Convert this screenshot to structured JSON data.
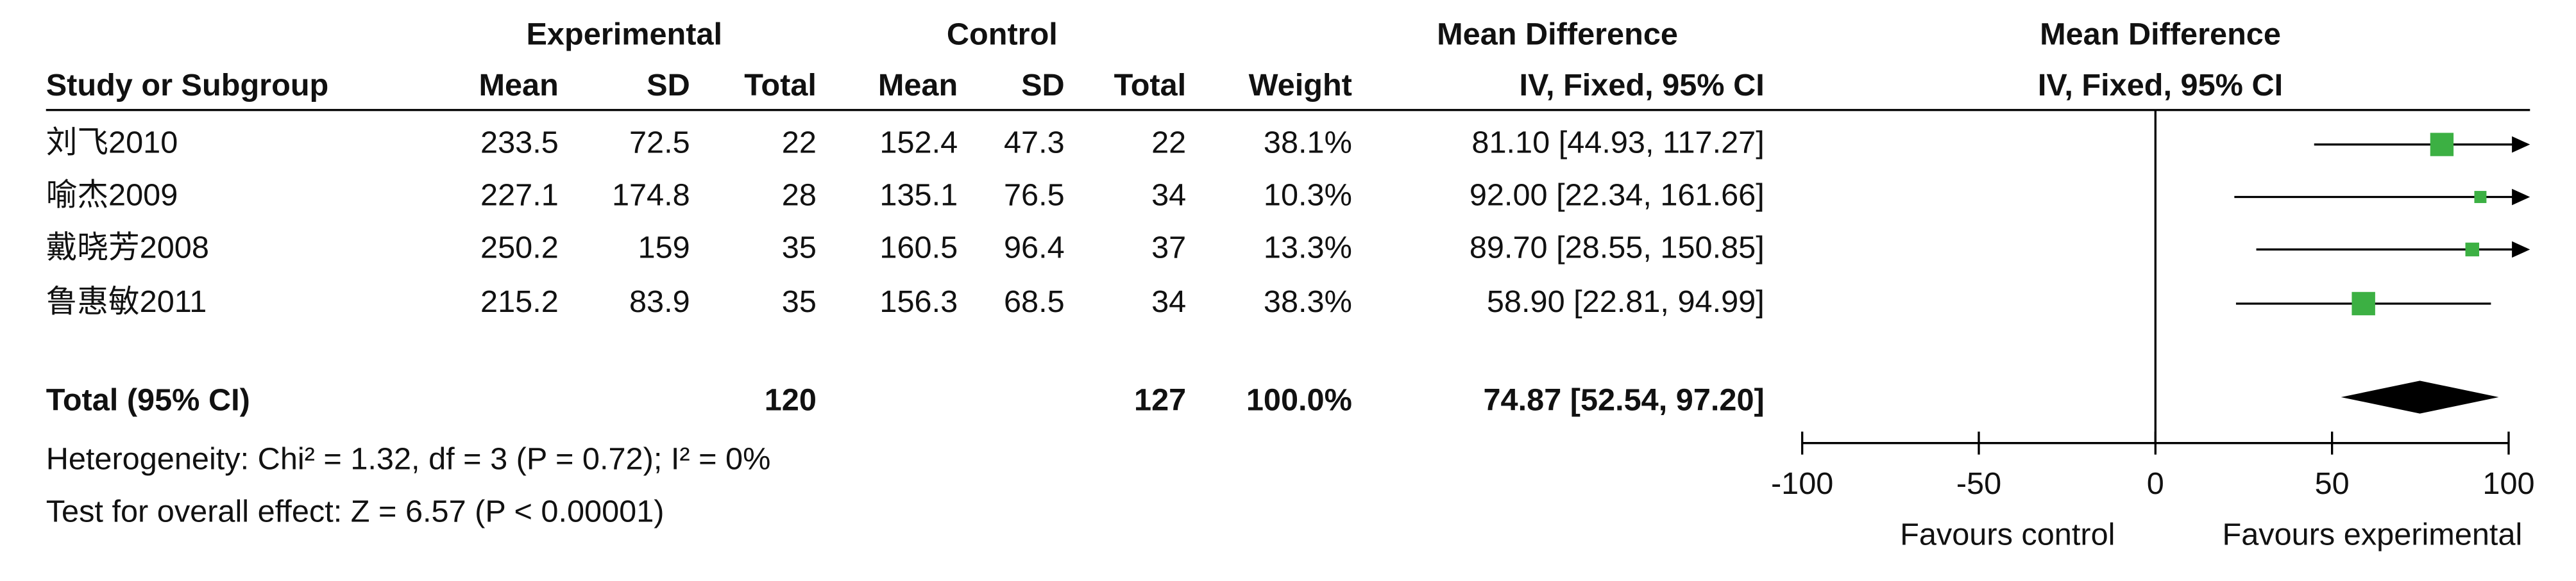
{
  "chart_data": {
    "type": "forest",
    "group_headers": {
      "experimental": "Experimental",
      "control": "Control",
      "effect": "Mean Difference",
      "plot": "Mean Difference"
    },
    "columns": [
      "Study or Subgroup",
      "Mean",
      "SD",
      "Total",
      "Mean",
      "SD",
      "Total",
      "Weight",
      "IV, Fixed, 95% CI",
      "IV, Fixed, 95% CI"
    ],
    "studies": [
      {
        "name": "刘飞2010",
        "exp_mean": 233.5,
        "exp_sd": 72.5,
        "exp_total": 22,
        "ctl_mean": 152.4,
        "ctl_sd": 47.3,
        "ctl_total": 22,
        "weight": 38.1,
        "weight_label": "38.1%",
        "md": 81.1,
        "ci_low": 44.93,
        "ci_high": 117.27,
        "effect_label": "81.10 [44.93, 117.27]"
      },
      {
        "name": "喻杰2009",
        "exp_mean": 227.1,
        "exp_sd": 174.8,
        "exp_total": 28,
        "ctl_mean": 135.1,
        "ctl_sd": 76.5,
        "ctl_total": 34,
        "weight": 10.3,
        "weight_label": "10.3%",
        "md": 92,
        "ci_low": 22.34,
        "ci_high": 161.66,
        "effect_label": "92.00 [22.34, 161.66]"
      },
      {
        "name": "戴晓芳2008",
        "exp_mean": 250.2,
        "exp_sd": 159,
        "exp_total": 35,
        "ctl_mean": 160.5,
        "ctl_sd": 96.4,
        "ctl_total": 37,
        "weight": 13.3,
        "weight_label": "13.3%",
        "md": 89.7,
        "ci_low": 28.55,
        "ci_high": 150.85,
        "effect_label": "89.70 [28.55, 150.85]"
      },
      {
        "name": "鲁惠敏2011",
        "exp_mean": 215.2,
        "exp_sd": 83.9,
        "exp_total": 35,
        "ctl_mean": 156.3,
        "ctl_sd": 68.5,
        "ctl_total": 34,
        "weight": 38.3,
        "weight_label": "38.3%",
        "md": 58.9,
        "ci_low": 22.81,
        "ci_high": 94.99,
        "effect_label": "58.90 [22.81, 94.99]"
      }
    ],
    "total": {
      "name": "Total (95% CI)",
      "exp_total": 120,
      "ctl_total": 127,
      "weight_label": "100.0%",
      "md": 74.87,
      "ci_low": 52.54,
      "ci_high": 97.2,
      "effect_label": "74.87 [52.54, 97.20]"
    },
    "heterogeneity": "Heterogeneity: Chi² = 1.32, df = 3 (P = 0.72); I² = 0%",
    "overall_effect": "Test for overall effect: Z = 6.57 (P < 0.00001)",
    "xlim": [
      -100,
      100
    ],
    "xticks": [
      -100,
      -50,
      0,
      50,
      100
    ],
    "x_labels": [
      "Favours control",
      "Favours experimental"
    ],
    "color": "#3cb043"
  }
}
